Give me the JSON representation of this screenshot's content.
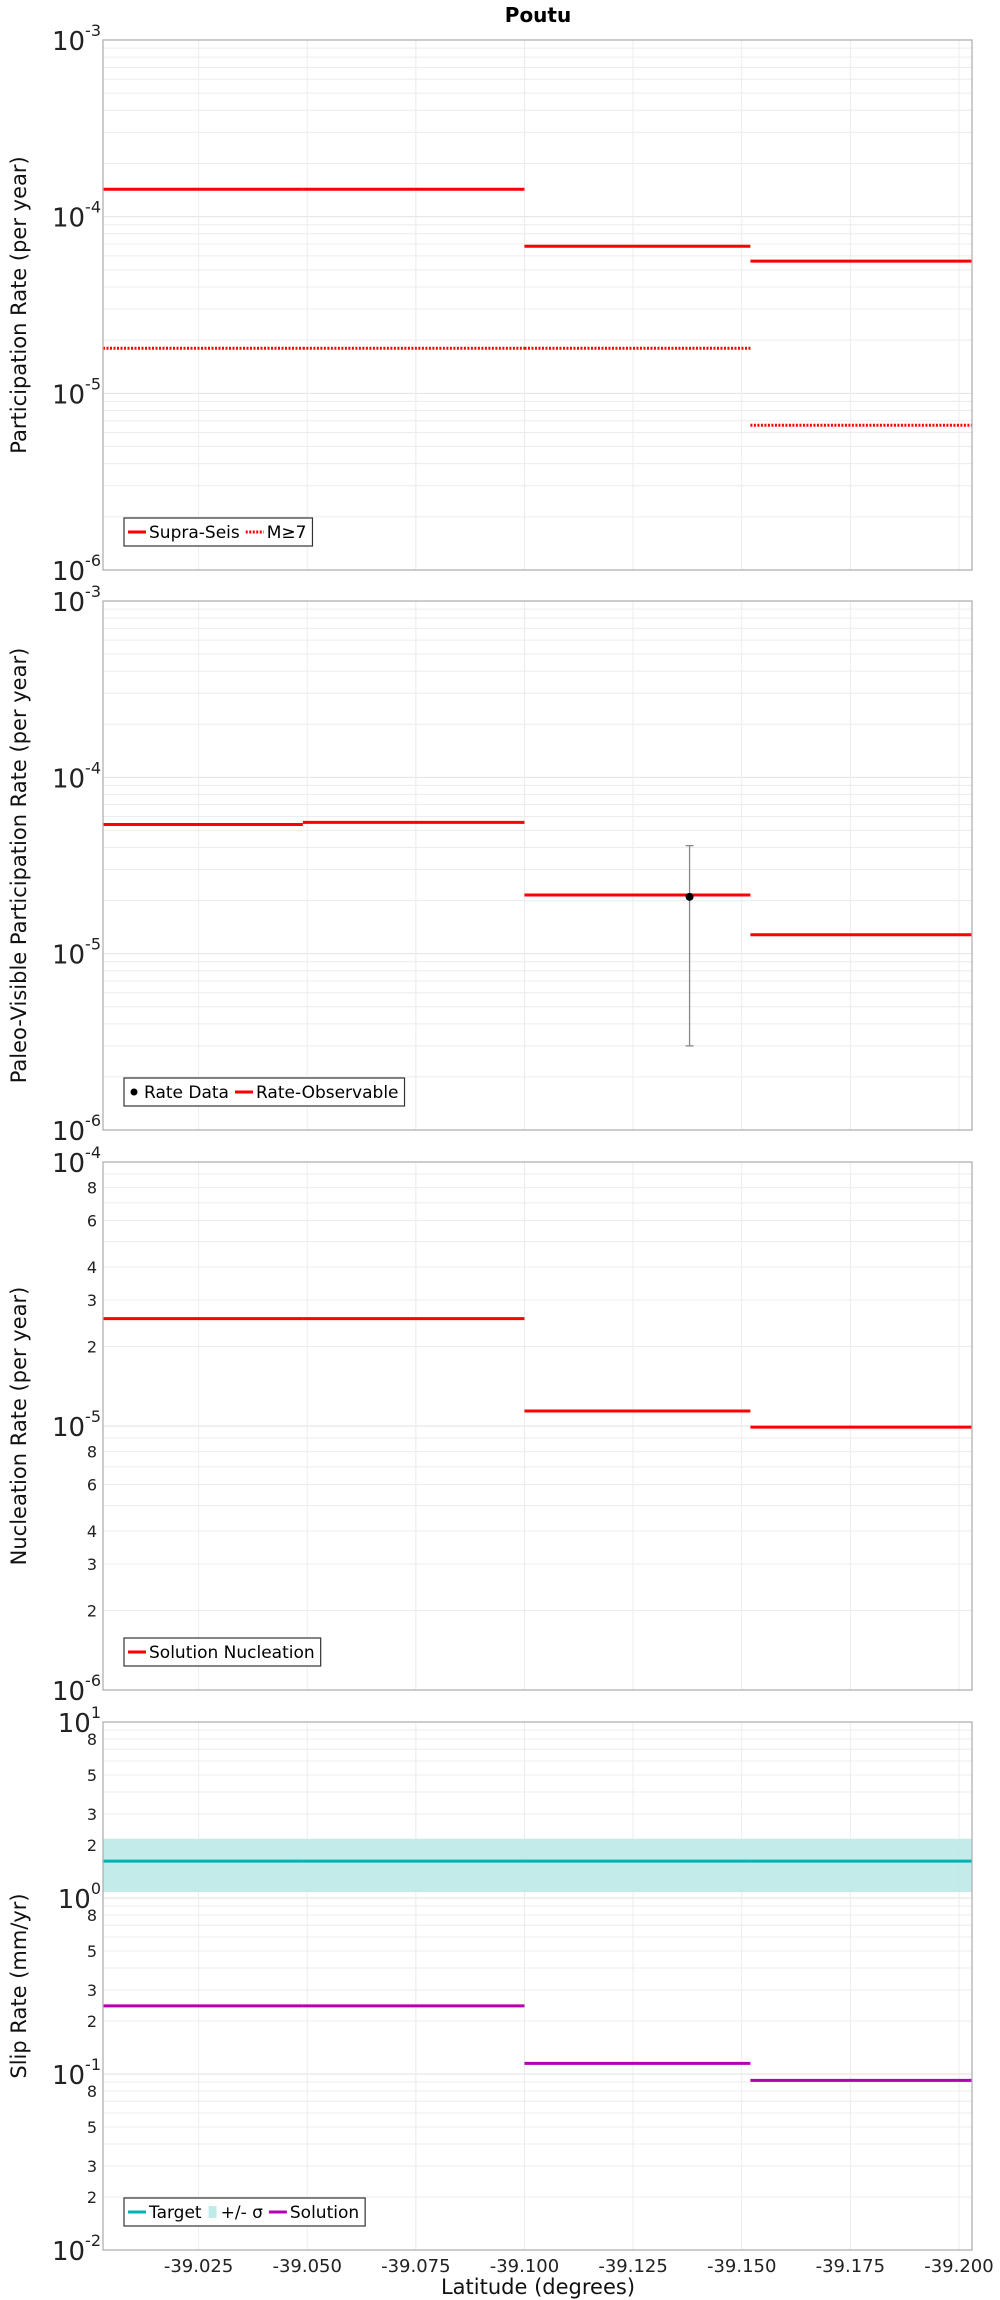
{
  "title": "Poutu",
  "chart_data": {
    "type": "line",
    "title": "Poutu",
    "xlabel": "Latitude (degrees)",
    "xlim": [
      -39.003,
      -39.203
    ],
    "xticks": [
      -39.025,
      -39.05,
      -39.075,
      -39.1,
      -39.125,
      -39.15,
      -39.175,
      -39.2
    ],
    "xtick_labels": [
      "-39.025",
      "-39.050",
      "-39.075",
      "-39.100",
      "-39.125",
      "-39.150",
      "-39.175",
      "-39.200"
    ],
    "section_edges": [
      -39.003,
      -39.049,
      -39.1,
      -39.152,
      -39.203
    ],
    "grid": true,
    "panels": [
      {
        "ylabel": "Participation Rate (per year)",
        "yscale": "log",
        "ylim": [
          1e-06,
          0.001
        ],
        "major_exponents": [
          -3,
          -4,
          -5,
          -6
        ],
        "minor_labels": [],
        "legend_position": "bottom-left",
        "legend": [
          {
            "label": "Supra-Seis",
            "style": "solid",
            "color": "#ff0000"
          },
          {
            "label": "M≥7",
            "style": "dotted",
            "color": "#ff0000"
          }
        ],
        "series": [
          {
            "name": "Supra-Seis",
            "style": "solid",
            "color": "#ff0000",
            "values": [
              0.000143,
              0.000143,
              6.8e-05,
              5.6e-05
            ]
          },
          {
            "name": "M≥7",
            "style": "dotted",
            "color": "#ff0000",
            "values": [
              1.8e-05,
              1.8e-05,
              1.8e-05,
              6.6e-06
            ]
          }
        ]
      },
      {
        "ylabel": "Paleo-Visible Participation Rate (per year)",
        "yscale": "log",
        "ylim": [
          1e-06,
          0.001
        ],
        "major_exponents": [
          -3,
          -4,
          -5,
          -6
        ],
        "minor_labels": [],
        "legend_position": "bottom-left",
        "legend": [
          {
            "label": "Rate Data",
            "style": "point",
            "color": "#000000"
          },
          {
            "label": "Rate-Observable",
            "style": "solid",
            "color": "#ff0000"
          }
        ],
        "series": [
          {
            "name": "Rate-Observable",
            "style": "solid",
            "color": "#ff0000",
            "values": [
              5.4e-05,
              5.55e-05,
              2.15e-05,
              1.28e-05
            ]
          }
        ],
        "points": [
          {
            "name": "Rate Data",
            "x": -39.138,
            "y": 2.1e-05,
            "ylow": 3e-06,
            "yhigh": 4.1e-05,
            "color": "#000000"
          }
        ]
      },
      {
        "ylabel": "Nucleation Rate (per year)",
        "yscale": "log",
        "ylim": [
          1e-06,
          0.0001
        ],
        "major_exponents": [
          -4,
          -5,
          -6
        ],
        "minor_labels": [
          8,
          6,
          4,
          3,
          2
        ],
        "legend_position": "bottom-left",
        "legend": [
          {
            "label": "Solution Nucleation",
            "style": "solid",
            "color": "#ff0000"
          }
        ],
        "series": [
          {
            "name": "Solution Nucleation",
            "style": "solid",
            "color": "#ff0000",
            "values": [
              2.55e-05,
              2.55e-05,
              1.14e-05,
              9.9e-06
            ]
          }
        ]
      },
      {
        "ylabel": "Slip Rate (mm/yr)",
        "yscale": "log",
        "ylim": [
          0.01,
          10.0
        ],
        "major_exponents": [
          1,
          0,
          -1,
          -2
        ],
        "minor_labels": [
          8,
          5,
          3,
          2
        ],
        "legend_position": "bottom-left",
        "legend": [
          {
            "label": "Target",
            "style": "solid",
            "color": "#00b3b3"
          },
          {
            "label": "+/- σ",
            "style": "band",
            "color": "#bfeae8"
          },
          {
            "label": "Solution",
            "style": "solid",
            "color": "#b300b3"
          }
        ],
        "band": {
          "name": "+/- σ",
          "low": 1.08,
          "high": 2.17,
          "color": "#bfeae8"
        },
        "series": [
          {
            "name": "Target",
            "style": "solid",
            "color": "#00b3b3",
            "values": [
              1.62,
              1.62,
              1.62,
              1.62
            ]
          },
          {
            "name": "Solution",
            "style": "solid",
            "color": "#b300b3",
            "values": [
              0.244,
              0.244,
              0.115,
              0.092
            ]
          }
        ]
      }
    ]
  }
}
